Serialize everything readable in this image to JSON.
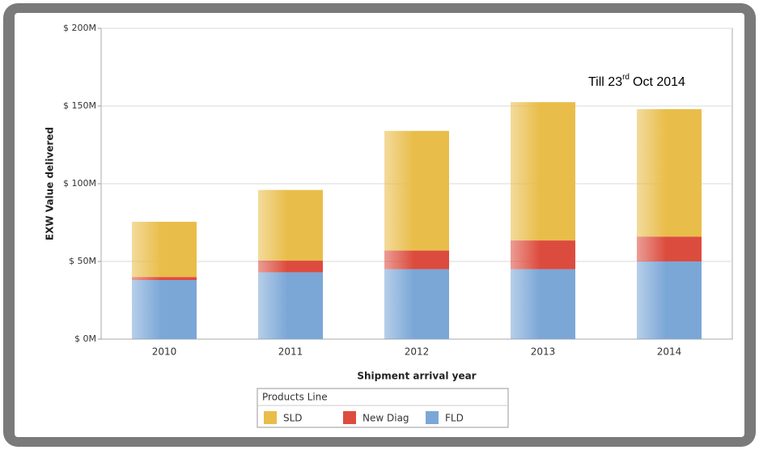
{
  "chart_data": {
    "type": "stacked_bar",
    "categories": [
      "2010",
      "2011",
      "2012",
      "2013",
      "2014"
    ],
    "series": [
      {
        "name": "FLD",
        "color": "#7ba7d7",
        "values": [
          38,
          43,
          45,
          45,
          50
        ]
      },
      {
        "name": "New Diag",
        "color": "#dc4c3e",
        "values": [
          2,
          7.5,
          12,
          18.5,
          16
        ]
      },
      {
        "name": "SLD",
        "color": "#e9bd4a",
        "values": [
          35.5,
          45.5,
          77,
          89,
          82
        ]
      }
    ],
    "ylim": [
      0,
      200
    ],
    "yticks": [
      {
        "value": 0,
        "label": "$ 0M"
      },
      {
        "value": 50,
        "label": "$ 50M"
      },
      {
        "value": 100,
        "label": "$ 100M"
      },
      {
        "value": 150,
        "label": "$ 150M"
      },
      {
        "value": 200,
        "label": "$ 200M"
      }
    ],
    "ylabel": "EXW Value delivered",
    "xlabel": "Shipment arrival year",
    "legend_title": "Products Line",
    "annotation": [
      "Till 23",
      "rd",
      "Oct 2014"
    ],
    "grid": true
  }
}
